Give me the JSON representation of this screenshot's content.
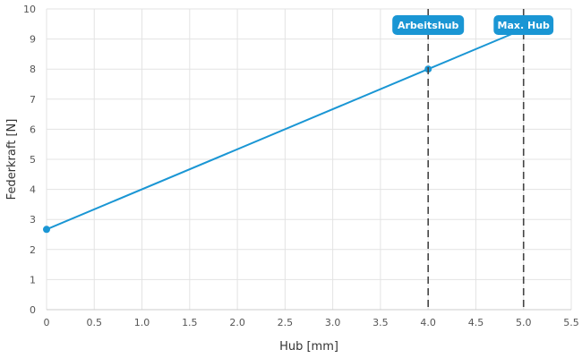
{
  "chart_data": {
    "type": "line",
    "title": "",
    "xlabel": "Hub [mm]",
    "ylabel": "Federkraft [N]",
    "xlim": [
      0,
      5.5
    ],
    "ylim": [
      0,
      10
    ],
    "x_ticks": [
      "0",
      "0.5",
      "1.0",
      "1.5",
      "2.0",
      "2.5",
      "3.0",
      "3.5",
      "4.0",
      "4.5",
      "5.0",
      "5.5"
    ],
    "x_tick_values": [
      0,
      0.5,
      1.0,
      1.5,
      2.0,
      2.5,
      3.0,
      3.5,
      4.0,
      4.5,
      5.0,
      5.5
    ],
    "y_ticks": [
      "0",
      "1",
      "2",
      "3",
      "4",
      "5",
      "6",
      "7",
      "8",
      "9",
      "10"
    ],
    "y_tick_values": [
      0,
      1,
      2,
      3,
      4,
      5,
      6,
      7,
      8,
      9,
      10
    ],
    "grid": true,
    "series": [
      {
        "x": [
          0,
          4.0,
          5.0
        ],
        "y": [
          2.67,
          8.0,
          9.33
        ],
        "markers_at": [
          0,
          4.0
        ],
        "color": "#1a96d4"
      }
    ],
    "markers": [
      {
        "x": 4.0,
        "label": "Arbeitshub"
      },
      {
        "x": 5.0,
        "label": "Max. Hub"
      }
    ],
    "colors": {
      "line": "#1a96d4",
      "label_bg": "#1a96d4",
      "marker_line": "#444444",
      "grid": "#e3e3e3",
      "axis": "#cccccc"
    }
  }
}
